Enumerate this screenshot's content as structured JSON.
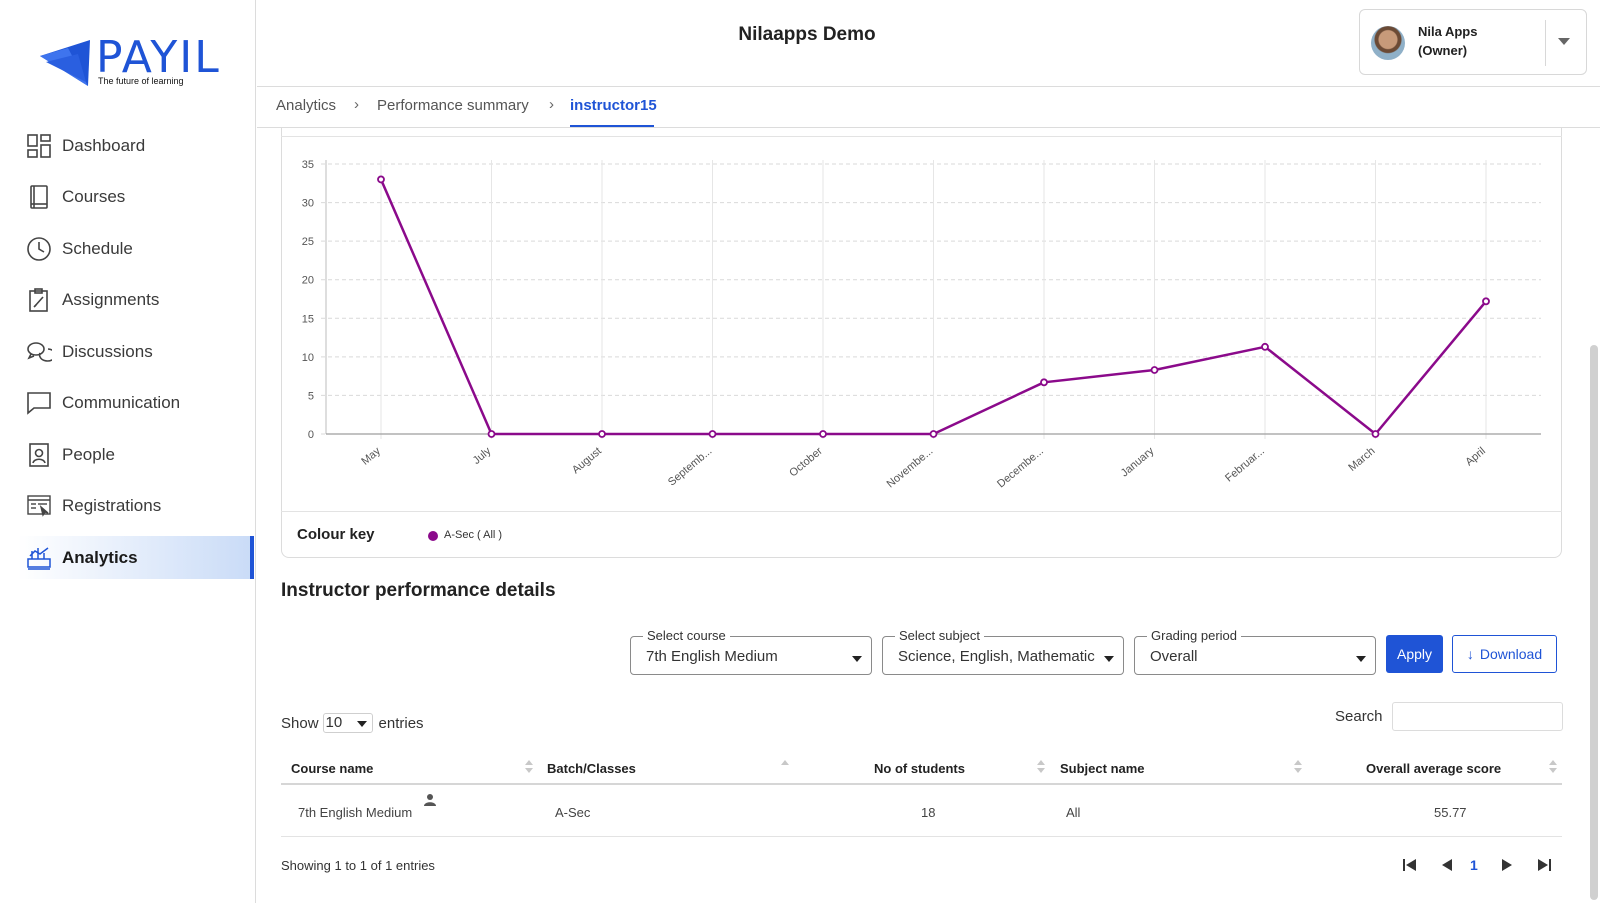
{
  "brand": {
    "name": "PAYIL",
    "tagline": "The future of learning",
    "color": "#1f54d6"
  },
  "header": {
    "org_title": "Nilaapps Demo",
    "user": {
      "name": "Nila Apps",
      "role": "(Owner)"
    }
  },
  "sidebar": {
    "items": [
      {
        "label": "Dashboard",
        "icon": "dashboard-icon"
      },
      {
        "label": "Courses",
        "icon": "book-icon"
      },
      {
        "label": "Schedule",
        "icon": "clock-icon"
      },
      {
        "label": "Assignments",
        "icon": "clipboard-icon"
      },
      {
        "label": "Discussions",
        "icon": "chat-bubbles-icon"
      },
      {
        "label": "Communication",
        "icon": "message-icon"
      },
      {
        "label": "People",
        "icon": "person-badge-icon"
      },
      {
        "label": "Registrations",
        "icon": "registration-form-icon"
      },
      {
        "label": "Analytics",
        "icon": "analytics-icon",
        "active": true
      }
    ]
  },
  "breadcrumb": {
    "items": [
      "Analytics",
      "Performance summary",
      "instructor15"
    ]
  },
  "chart_data": {
    "type": "line",
    "categories": [
      "May",
      "July",
      "August",
      "Septemb...",
      "October",
      "Novembe...",
      "Decembe...",
      "January",
      "Februar...",
      "March",
      "April"
    ],
    "series": [
      {
        "name": "A-Sec ( All )",
        "color": "#8b0a8b",
        "values": [
          33,
          0,
          0,
          0,
          0,
          0,
          6.7,
          8.3,
          11.3,
          0,
          17.2
        ]
      }
    ],
    "ylim": [
      0,
      35
    ],
    "yticks": [
      "0",
      "5",
      "10",
      "15",
      "20",
      "25",
      "30",
      "35"
    ],
    "grid": true,
    "legend_title": "Colour key"
  },
  "details": {
    "title": "Instructor performance details",
    "filters": {
      "course": {
        "label": "Select course",
        "value": "7th English Medium"
      },
      "subject": {
        "label": "Select subject",
        "value": "Science, English, Mathematic"
      },
      "grading": {
        "label": "Grading period",
        "value": "Overall"
      }
    },
    "apply_label": "Apply",
    "download_label": "Download",
    "show_label": "Show",
    "entries_value": "10",
    "entries_label": "entries",
    "search_label": "Search",
    "table": {
      "headers": [
        "Course name",
        "Batch/Classes",
        "No of students",
        "Subject name",
        "Overall average score"
      ],
      "rows": [
        {
          "course": "7th English Medium",
          "batch": "A-Sec",
          "students": "18",
          "subject": "All",
          "score": "55.77"
        }
      ]
    },
    "showing_text": "Showing 1 to 1 of 1 entries",
    "current_page": "1"
  }
}
